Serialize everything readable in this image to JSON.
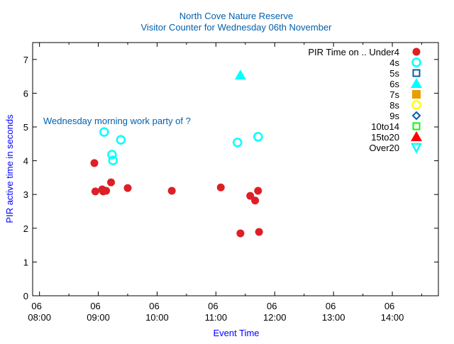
{
  "chart_data": {
    "type": "scatter",
    "title": "North Cove Nature Reserve",
    "subtitle": "Visitor Counter for Wednesday 06th November",
    "xlabel": "Event Time",
    "ylabel": "PIR active time in seconds",
    "annotation": "Wednesday morning work party of ?",
    "xlim": [
      "07:53",
      "14:47"
    ],
    "ylim": [
      0,
      7.5
    ],
    "xticks": [
      {
        "t": "08:00",
        "day": "06",
        "label": "08:00"
      },
      {
        "t": "09:00",
        "day": "06",
        "label": "09:00"
      },
      {
        "t": "10:00",
        "day": "06",
        "label": "10:00"
      },
      {
        "t": "11:00",
        "day": "06",
        "label": "11:00"
      },
      {
        "t": "12:00",
        "day": "06",
        "label": "12:00"
      },
      {
        "t": "13:00",
        "day": "06",
        "label": "13:00"
      },
      {
        "t": "14:00",
        "day": "06",
        "label": "14:00"
      }
    ],
    "yticks": [
      "0",
      "1",
      "2",
      "3",
      "4",
      "5",
      "6",
      "7"
    ],
    "legend_title": "PIR Time on ..",
    "legend_position": "top-right",
    "grid": false,
    "series": [
      {
        "name": "Under4",
        "marker": "filled-circle",
        "color": "#dd1f26",
        "points": [
          [
            "08:56",
            3.93
          ],
          [
            "08:57",
            3.09
          ],
          [
            "09:04",
            3.15
          ],
          [
            "09:05",
            3.09
          ],
          [
            "09:08",
            3.11
          ],
          [
            "09:13",
            3.36
          ],
          [
            "09:30",
            3.19
          ],
          [
            "10:15",
            3.11
          ],
          [
            "11:05",
            3.21
          ],
          [
            "11:25",
            1.85
          ],
          [
            "11:35",
            2.96
          ],
          [
            "11:40",
            2.82
          ],
          [
            "11:43",
            3.11
          ],
          [
            "11:44",
            1.89
          ]
        ]
      },
      {
        "name": "4s",
        "marker": "open-circle",
        "color": "#00ffff",
        "points": [
          [
            "09:06",
            4.85
          ],
          [
            "09:23",
            4.62
          ],
          [
            "09:14",
            4.18
          ],
          [
            "09:15",
            4.01
          ],
          [
            "11:22",
            4.54
          ],
          [
            "11:43",
            4.71
          ]
        ]
      },
      {
        "name": "5s",
        "marker": "open-square",
        "color": "#0060ad",
        "points": []
      },
      {
        "name": "6s",
        "marker": "filled-triangle",
        "color": "#00ffff",
        "points": [
          [
            "11:25",
            6.53
          ]
        ]
      },
      {
        "name": "7s",
        "marker": "filled-square",
        "color": "#e69f00",
        "points": []
      },
      {
        "name": "8s",
        "marker": "open-circle",
        "color": "#ffff00",
        "points": []
      },
      {
        "name": "9s",
        "marker": "open-diamond",
        "color": "#0060ad",
        "points": []
      },
      {
        "name": "10to14",
        "marker": "open-square",
        "color": "#00ff00",
        "points": []
      },
      {
        "name": "15to20",
        "marker": "filled-triangle",
        "color": "#ff0000",
        "points": []
      },
      {
        "name": "Over20",
        "marker": "open-triangle-down",
        "color": "#00ffff",
        "points": []
      }
    ]
  }
}
